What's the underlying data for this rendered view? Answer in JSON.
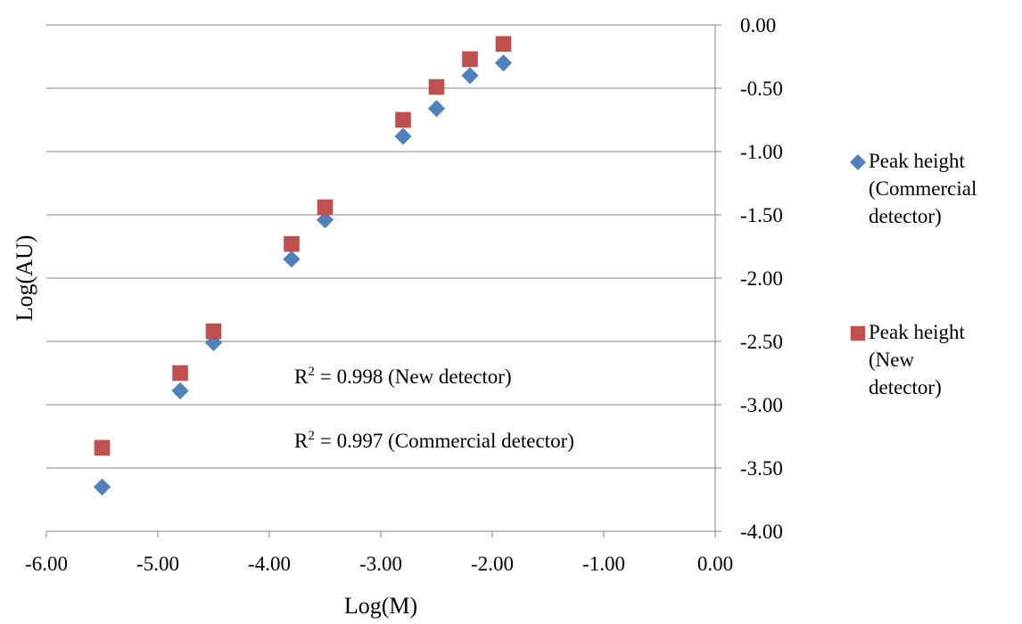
{
  "chart_data": {
    "type": "scatter",
    "x_label": "Log(M)",
    "y_label": "Log(AU)",
    "xlim": [
      -6,
      0
    ],
    "ylim": [
      -4,
      0
    ],
    "xticks": [
      {
        "value": -6,
        "label": "-6.00"
      },
      {
        "value": -5,
        "label": "-5.00"
      },
      {
        "value": -4,
        "label": "-4.00"
      },
      {
        "value": -3,
        "label": "-3.00"
      },
      {
        "value": -2,
        "label": "-2.00"
      },
      {
        "value": -1,
        "label": "-1.00"
      },
      {
        "value": 0,
        "label": "0.00"
      }
    ],
    "yticks": [
      {
        "value": 0,
        "label": "0.00"
      },
      {
        "value": -0.5,
        "label": "-0.50"
      },
      {
        "value": -1,
        "label": "-1.00"
      },
      {
        "value": -1.5,
        "label": "-1.50"
      },
      {
        "value": -2,
        "label": "-2.00"
      },
      {
        "value": -2.5,
        "label": "-2.50"
      },
      {
        "value": -3,
        "label": "-3.00"
      },
      {
        "value": -3.5,
        "label": "-3.50"
      },
      {
        "value": -4,
        "label": "-4.00"
      }
    ],
    "grid": true,
    "y_axis_side": "right",
    "legend_position": "right",
    "series": [
      {
        "name": "Peak height (Commercial detector)",
        "color": "#4f81bd",
        "marker": "diamond",
        "x": [
          -5.5,
          -4.8,
          -4.5,
          -3.8,
          -3.5,
          -2.8,
          -2.5,
          -2.2,
          -1.9
        ],
        "values": [
          -3.65,
          -2.89,
          -2.51,
          -1.85,
          -1.54,
          -0.88,
          -0.66,
          -0.4,
          -0.3
        ]
      },
      {
        "name": "Peak height (New detector)",
        "color": "#c0504d",
        "marker": "square",
        "x": [
          -5.5,
          -4.8,
          -4.5,
          -3.8,
          -3.5,
          -2.8,
          -2.5,
          -2.2,
          -1.9
        ],
        "values": [
          -3.34,
          -2.75,
          -2.42,
          -1.73,
          -1.44,
          -0.75,
          -0.49,
          -0.27,
          -0.15
        ]
      }
    ],
    "annotations": [
      {
        "base": "R",
        "sup": "2",
        "text": "= 0.998 (New detector)"
      },
      {
        "base": "R",
        "sup": "2",
        "text": "= 0.997 (Commercial detector)"
      }
    ]
  }
}
